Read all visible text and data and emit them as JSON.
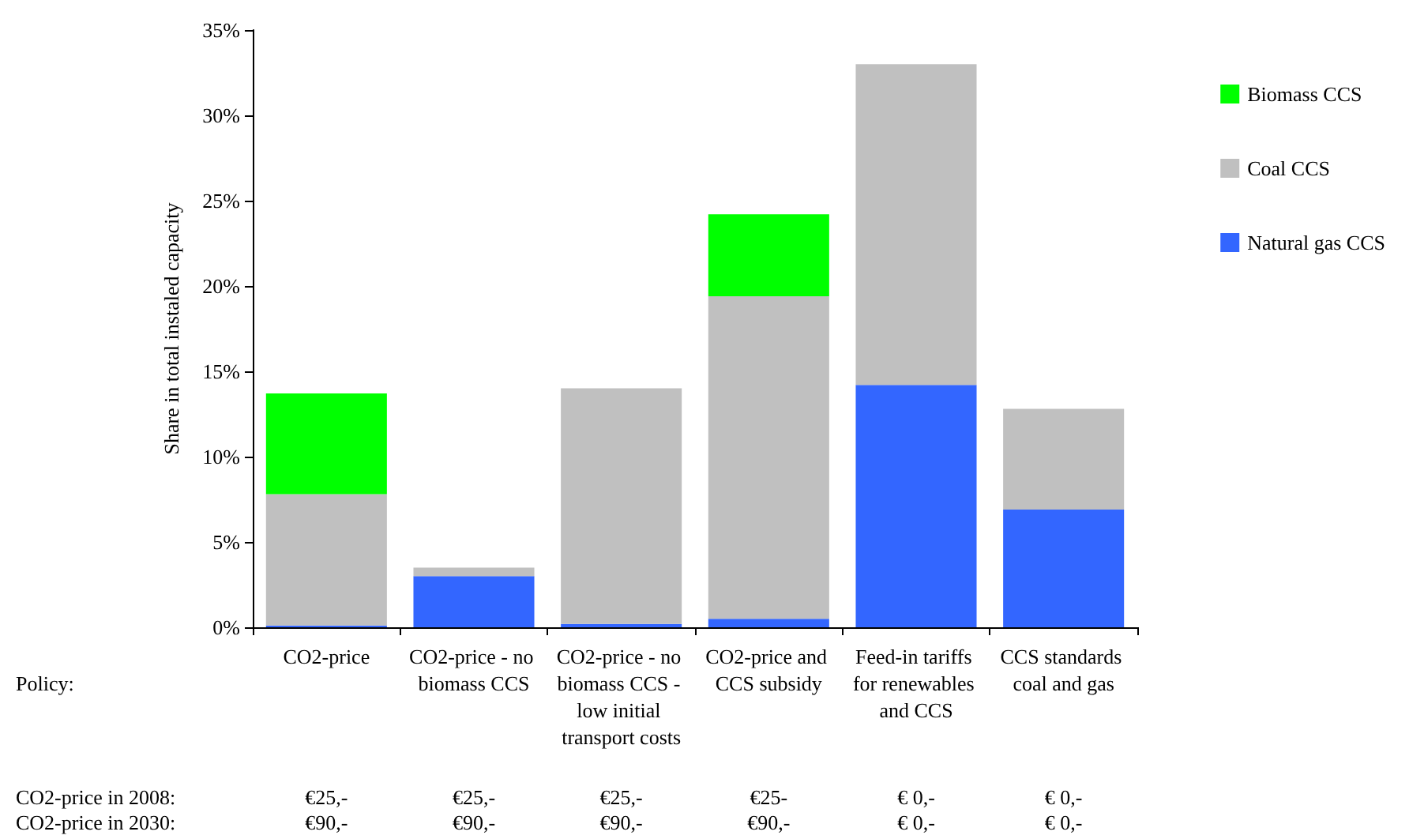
{
  "chart_data": {
    "type": "bar",
    "stacked": true,
    "ylabel": "Share in total instaled capacity",
    "categories": [
      "CO2-price",
      "CO2-price - no biomass CCS",
      "CO2-price - no biomass CCS - low initial transport costs",
      "CO2-price and CCS subsidy",
      "Feed-in tariffs for renewables and CCS",
      "CCS standards coal and gas"
    ],
    "series": [
      {
        "name": "Natural gas CCS",
        "color": "#3366ff",
        "values": [
          0.1,
          3.0,
          0.2,
          0.5,
          14.2,
          6.9
        ]
      },
      {
        "name": "Coal CCS",
        "color": "#c0c0c0",
        "values": [
          7.7,
          0.5,
          13.8,
          18.9,
          18.8,
          5.9
        ]
      },
      {
        "name": "Biomass CCS",
        "color": "#00ff00",
        "values": [
          5.9,
          null,
          null,
          4.8,
          null,
          null
        ]
      }
    ],
    "ylim": [
      0,
      35
    ],
    "yticks": [
      {
        "value": 0,
        "label": "0%"
      },
      {
        "value": 5,
        "label": "5%"
      },
      {
        "value": 10,
        "label": "10%"
      },
      {
        "value": 15,
        "label": "15%"
      },
      {
        "value": 20,
        "label": "20%"
      },
      {
        "value": 25,
        "label": "25%"
      },
      {
        "value": 30,
        "label": "30%"
      },
      {
        "value": 35,
        "label": "35%"
      }
    ],
    "grid": false,
    "legend": "top right",
    "annotations": [
      "Policy:",
      "CO2-price in 2008:",
      "€25,-",
      "€25,-",
      "€25,-",
      "€25-",
      "€ 0,-",
      "€ 0,-",
      "CO2-price in 2030:",
      "€90,-",
      "€90,-",
      "€90,-",
      "€90,-",
      "€ 0,-",
      "€ 0,-"
    ]
  }
}
